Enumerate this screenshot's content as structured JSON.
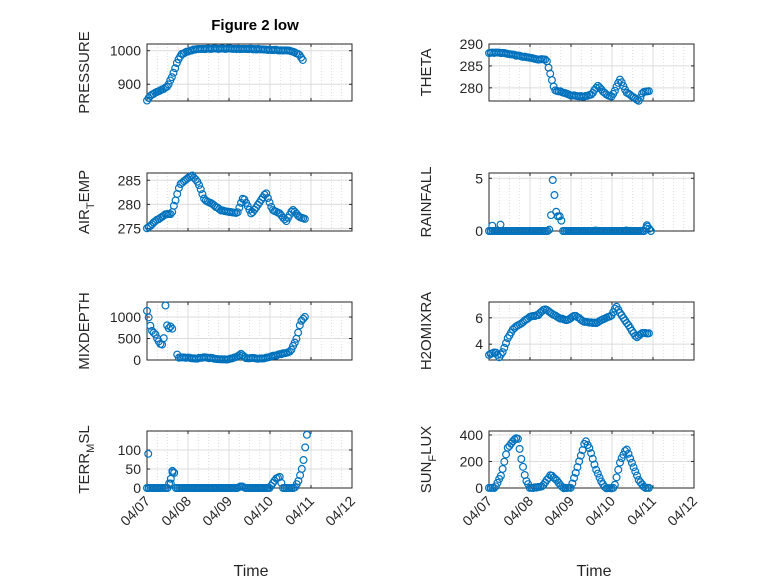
{
  "figure": {
    "title": "Figure 2 low",
    "xlabel": "Time",
    "x_ticks": [
      "04/07",
      "04/08",
      "04/09",
      "04/10",
      "04/11",
      "04/12"
    ],
    "marker_color": "#0072BD"
  },
  "chart_data": [
    {
      "type": "scatter",
      "name": "pressure",
      "ylabel_main": "PRESSURE",
      "ylabel_sub": "",
      "ylabel_tail": "",
      "ylim": [
        850,
        1020
      ],
      "yticks": [
        900,
        1000
      ],
      "ytick_labels": [
        "900",
        "1000"
      ],
      "keys": [
        [
          0,
          852
        ],
        [
          0.05,
          860
        ],
        [
          0.1,
          868
        ],
        [
          0.3,
          880
        ],
        [
          0.5,
          893
        ],
        [
          0.62,
          925
        ],
        [
          0.75,
          970
        ],
        [
          0.85,
          990
        ],
        [
          1.0,
          998
        ],
        [
          1.2,
          1005
        ],
        [
          1.6,
          1006
        ],
        [
          2.0,
          1006
        ],
        [
          2.5,
          1005
        ],
        [
          2.8,
          1004
        ],
        [
          3.1,
          1002
        ],
        [
          3.5,
          1000
        ],
        [
          3.7,
          990
        ],
        [
          3.8,
          972
        ]
      ]
    },
    {
      "type": "scatter",
      "name": "theta",
      "ylabel_main": "THETA",
      "ylabel_sub": "",
      "ylabel_tail": "",
      "ylim": [
        277,
        290
      ],
      "yticks": [
        280,
        285,
        290
      ],
      "ytick_labels": [
        "280",
        "285",
        "290"
      ],
      "keys": [
        [
          0,
          288
        ],
        [
          0.3,
          288
        ],
        [
          0.6,
          287.5
        ],
        [
          0.9,
          287
        ],
        [
          1.2,
          286.5
        ],
        [
          1.4,
          286.5
        ],
        [
          1.5,
          283
        ],
        [
          1.6,
          279.5
        ],
        [
          1.8,
          279
        ],
        [
          2.0,
          278.3
        ],
        [
          2.3,
          278
        ],
        [
          2.5,
          278.5
        ],
        [
          2.65,
          280.5
        ],
        [
          2.85,
          278.5
        ],
        [
          3.0,
          278
        ],
        [
          3.2,
          282
        ],
        [
          3.35,
          279
        ],
        [
          3.5,
          278
        ],
        [
          3.65,
          277
        ],
        [
          3.75,
          279
        ],
        [
          3.9,
          279.2
        ]
      ]
    },
    {
      "type": "scatter",
      "name": "air_temp",
      "ylabel_main": "AIR",
      "ylabel_sub": "T",
      "ylabel_tail": "EMP",
      "ylim": [
        274.5,
        286.5
      ],
      "yticks": [
        275,
        280,
        285
      ],
      "ytick_labels": [
        "275",
        "280",
        "285"
      ],
      "keys": [
        [
          0,
          275
        ],
        [
          0.2,
          276.5
        ],
        [
          0.45,
          278
        ],
        [
          0.6,
          278
        ],
        [
          0.7,
          281
        ],
        [
          0.8,
          284
        ],
        [
          1.0,
          285.5
        ],
        [
          1.1,
          286
        ],
        [
          1.25,
          284.5
        ],
        [
          1.4,
          281
        ],
        [
          1.6,
          280
        ],
        [
          1.8,
          278.8
        ],
        [
          2.0,
          278.5
        ],
        [
          2.2,
          278.2
        ],
        [
          2.35,
          281.5
        ],
        [
          2.55,
          278
        ],
        [
          2.75,
          280.5
        ],
        [
          2.9,
          282.5
        ],
        [
          3.05,
          279
        ],
        [
          3.25,
          278
        ],
        [
          3.4,
          276.5
        ],
        [
          3.55,
          279
        ],
        [
          3.7,
          277.5
        ],
        [
          3.85,
          277
        ]
      ]
    },
    {
      "type": "scatter",
      "name": "rainfall",
      "ylabel_main": "RAINFALL",
      "ylabel_sub": "",
      "ylabel_tail": "",
      "ylim": [
        0,
        5.5
      ],
      "yticks": [
        0,
        5
      ],
      "ytick_labels": [
        "0",
        "5"
      ],
      "keys": [
        [
          0,
          0
        ],
        [
          1.45,
          0
        ],
        [
          1.5,
          0.3
        ],
        [
          1.55,
          5
        ],
        [
          1.6,
          3.3
        ],
        [
          1.65,
          1.4
        ],
        [
          1.75,
          1.4
        ],
        [
          1.8,
          0
        ],
        [
          3.8,
          0
        ],
        [
          3.85,
          0.5
        ],
        [
          3.95,
          0
        ]
      ],
      "extra": [
        [
          0.08,
          0.5
        ],
        [
          0.28,
          0.6
        ],
        [
          0.2,
          0.05
        ],
        [
          2.6,
          0.05
        ],
        [
          3.35,
          0.05
        ],
        [
          3.85,
          0.55
        ]
      ]
    },
    {
      "type": "scatter",
      "name": "mixdepth",
      "ylabel_main": "MIXDEPTH",
      "ylabel_sub": "",
      "ylabel_tail": "",
      "ylim": [
        0,
        1350
      ],
      "yticks": [
        0,
        500,
        1000
      ],
      "ytick_labels": [
        "0",
        "500",
        "1000"
      ],
      "keys": [
        [
          0,
          1150
        ],
        [
          0.05,
          950
        ],
        [
          0.1,
          700
        ],
        [
          0.2,
          600
        ],
        [
          0.3,
          400
        ],
        [
          0.4,
          330
        ],
        [
          0.45,
          1280
        ],
        [
          0.5,
          700
        ],
        [
          0.6,
          800
        ],
        [
          0.75,
          60
        ],
        [
          1.0,
          50
        ],
        [
          1.2,
          30
        ],
        [
          1.4,
          60
        ],
        [
          1.6,
          40
        ],
        [
          1.8,
          10
        ],
        [
          2.0,
          20
        ],
        [
          2.2,
          80
        ],
        [
          2.3,
          150
        ],
        [
          2.4,
          50
        ],
        [
          2.8,
          30
        ],
        [
          3.2,
          120
        ],
        [
          3.5,
          200
        ],
        [
          3.65,
          500
        ],
        [
          3.75,
          900
        ],
        [
          3.85,
          1000
        ]
      ],
      "gaps": [
        [
          0.65,
          0.72
        ]
      ]
    },
    {
      "type": "scatter",
      "name": "h2omixra",
      "ylabel_main": "H2OMIXRA",
      "ylabel_sub": "",
      "ylabel_tail": "",
      "ylim": [
        2.8,
        7.2
      ],
      "yticks": [
        4,
        6
      ],
      "ytick_labels": [
        "4",
        "6"
      ],
      "keys": [
        [
          0,
          3.2
        ],
        [
          0.15,
          3.4
        ],
        [
          0.25,
          3
        ],
        [
          0.35,
          3.5
        ],
        [
          0.45,
          4.4
        ],
        [
          0.6,
          5.2
        ],
        [
          0.8,
          5.6
        ],
        [
          1.0,
          6.1
        ],
        [
          1.2,
          6.2
        ],
        [
          1.35,
          6.7
        ],
        [
          1.5,
          6.4
        ],
        [
          1.7,
          6
        ],
        [
          1.9,
          5.8
        ],
        [
          2.1,
          6.2
        ],
        [
          2.3,
          5.7
        ],
        [
          2.6,
          5.6
        ],
        [
          2.8,
          5.9
        ],
        [
          3.0,
          6.2
        ],
        [
          3.1,
          6.9
        ],
        [
          3.25,
          6.1
        ],
        [
          3.45,
          5.2
        ],
        [
          3.6,
          4.5
        ],
        [
          3.75,
          4.9
        ],
        [
          3.9,
          4.8
        ]
      ]
    },
    {
      "type": "scatter",
      "name": "terr_msl",
      "ylabel_main": "TERR",
      "ylabel_sub": "M",
      "ylabel_tail": "SL",
      "ylim": [
        0,
        150
      ],
      "yticks": [
        0,
        50,
        100
      ],
      "ytick_labels": [
        "0",
        "50",
        "100"
      ],
      "keys": [
        [
          0,
          0
        ],
        [
          0.5,
          0
        ],
        [
          0.55,
          15
        ],
        [
          0.6,
          30
        ],
        [
          0.65,
          55
        ],
        [
          0.7,
          0
        ],
        [
          2.2,
          0
        ],
        [
          2.3,
          5
        ],
        [
          2.4,
          0
        ],
        [
          3.0,
          0
        ],
        [
          3.05,
          10
        ],
        [
          3.15,
          25
        ],
        [
          3.25,
          30
        ],
        [
          3.3,
          0
        ],
        [
          3.6,
          0
        ],
        [
          3.7,
          20
        ],
        [
          3.8,
          60
        ],
        [
          3.9,
          140
        ]
      ],
      "extra": [
        [
          0.03,
          90
        ],
        [
          0.62,
          45
        ],
        [
          0.58,
          12
        ]
      ]
    },
    {
      "type": "scatter",
      "name": "sun_flux",
      "ylabel_main": "SUN",
      "ylabel_sub": "F",
      "ylabel_tail": "LUX",
      "ylim": [
        0,
        430
      ],
      "yticks": [
        0,
        200,
        400
      ],
      "ytick_labels": [
        "0",
        "200",
        "400"
      ],
      "keys": [
        [
          0,
          0
        ],
        [
          0.15,
          0
        ],
        [
          0.3,
          100
        ],
        [
          0.45,
          300
        ],
        [
          0.6,
          360
        ],
        [
          0.7,
          380
        ],
        [
          0.8,
          200
        ],
        [
          0.9,
          60
        ],
        [
          1.0,
          0
        ],
        [
          1.3,
          10
        ],
        [
          1.5,
          100
        ],
        [
          1.65,
          60
        ],
        [
          1.8,
          0
        ],
        [
          2.0,
          0
        ],
        [
          2.2,
          200
        ],
        [
          2.35,
          360
        ],
        [
          2.45,
          300
        ],
        [
          2.6,
          150
        ],
        [
          2.75,
          40
        ],
        [
          2.85,
          0
        ],
        [
          3.05,
          0
        ],
        [
          3.2,
          200
        ],
        [
          3.35,
          300
        ],
        [
          3.5,
          180
        ],
        [
          3.65,
          60
        ],
        [
          3.8,
          0
        ],
        [
          3.9,
          0
        ]
      ]
    }
  ]
}
